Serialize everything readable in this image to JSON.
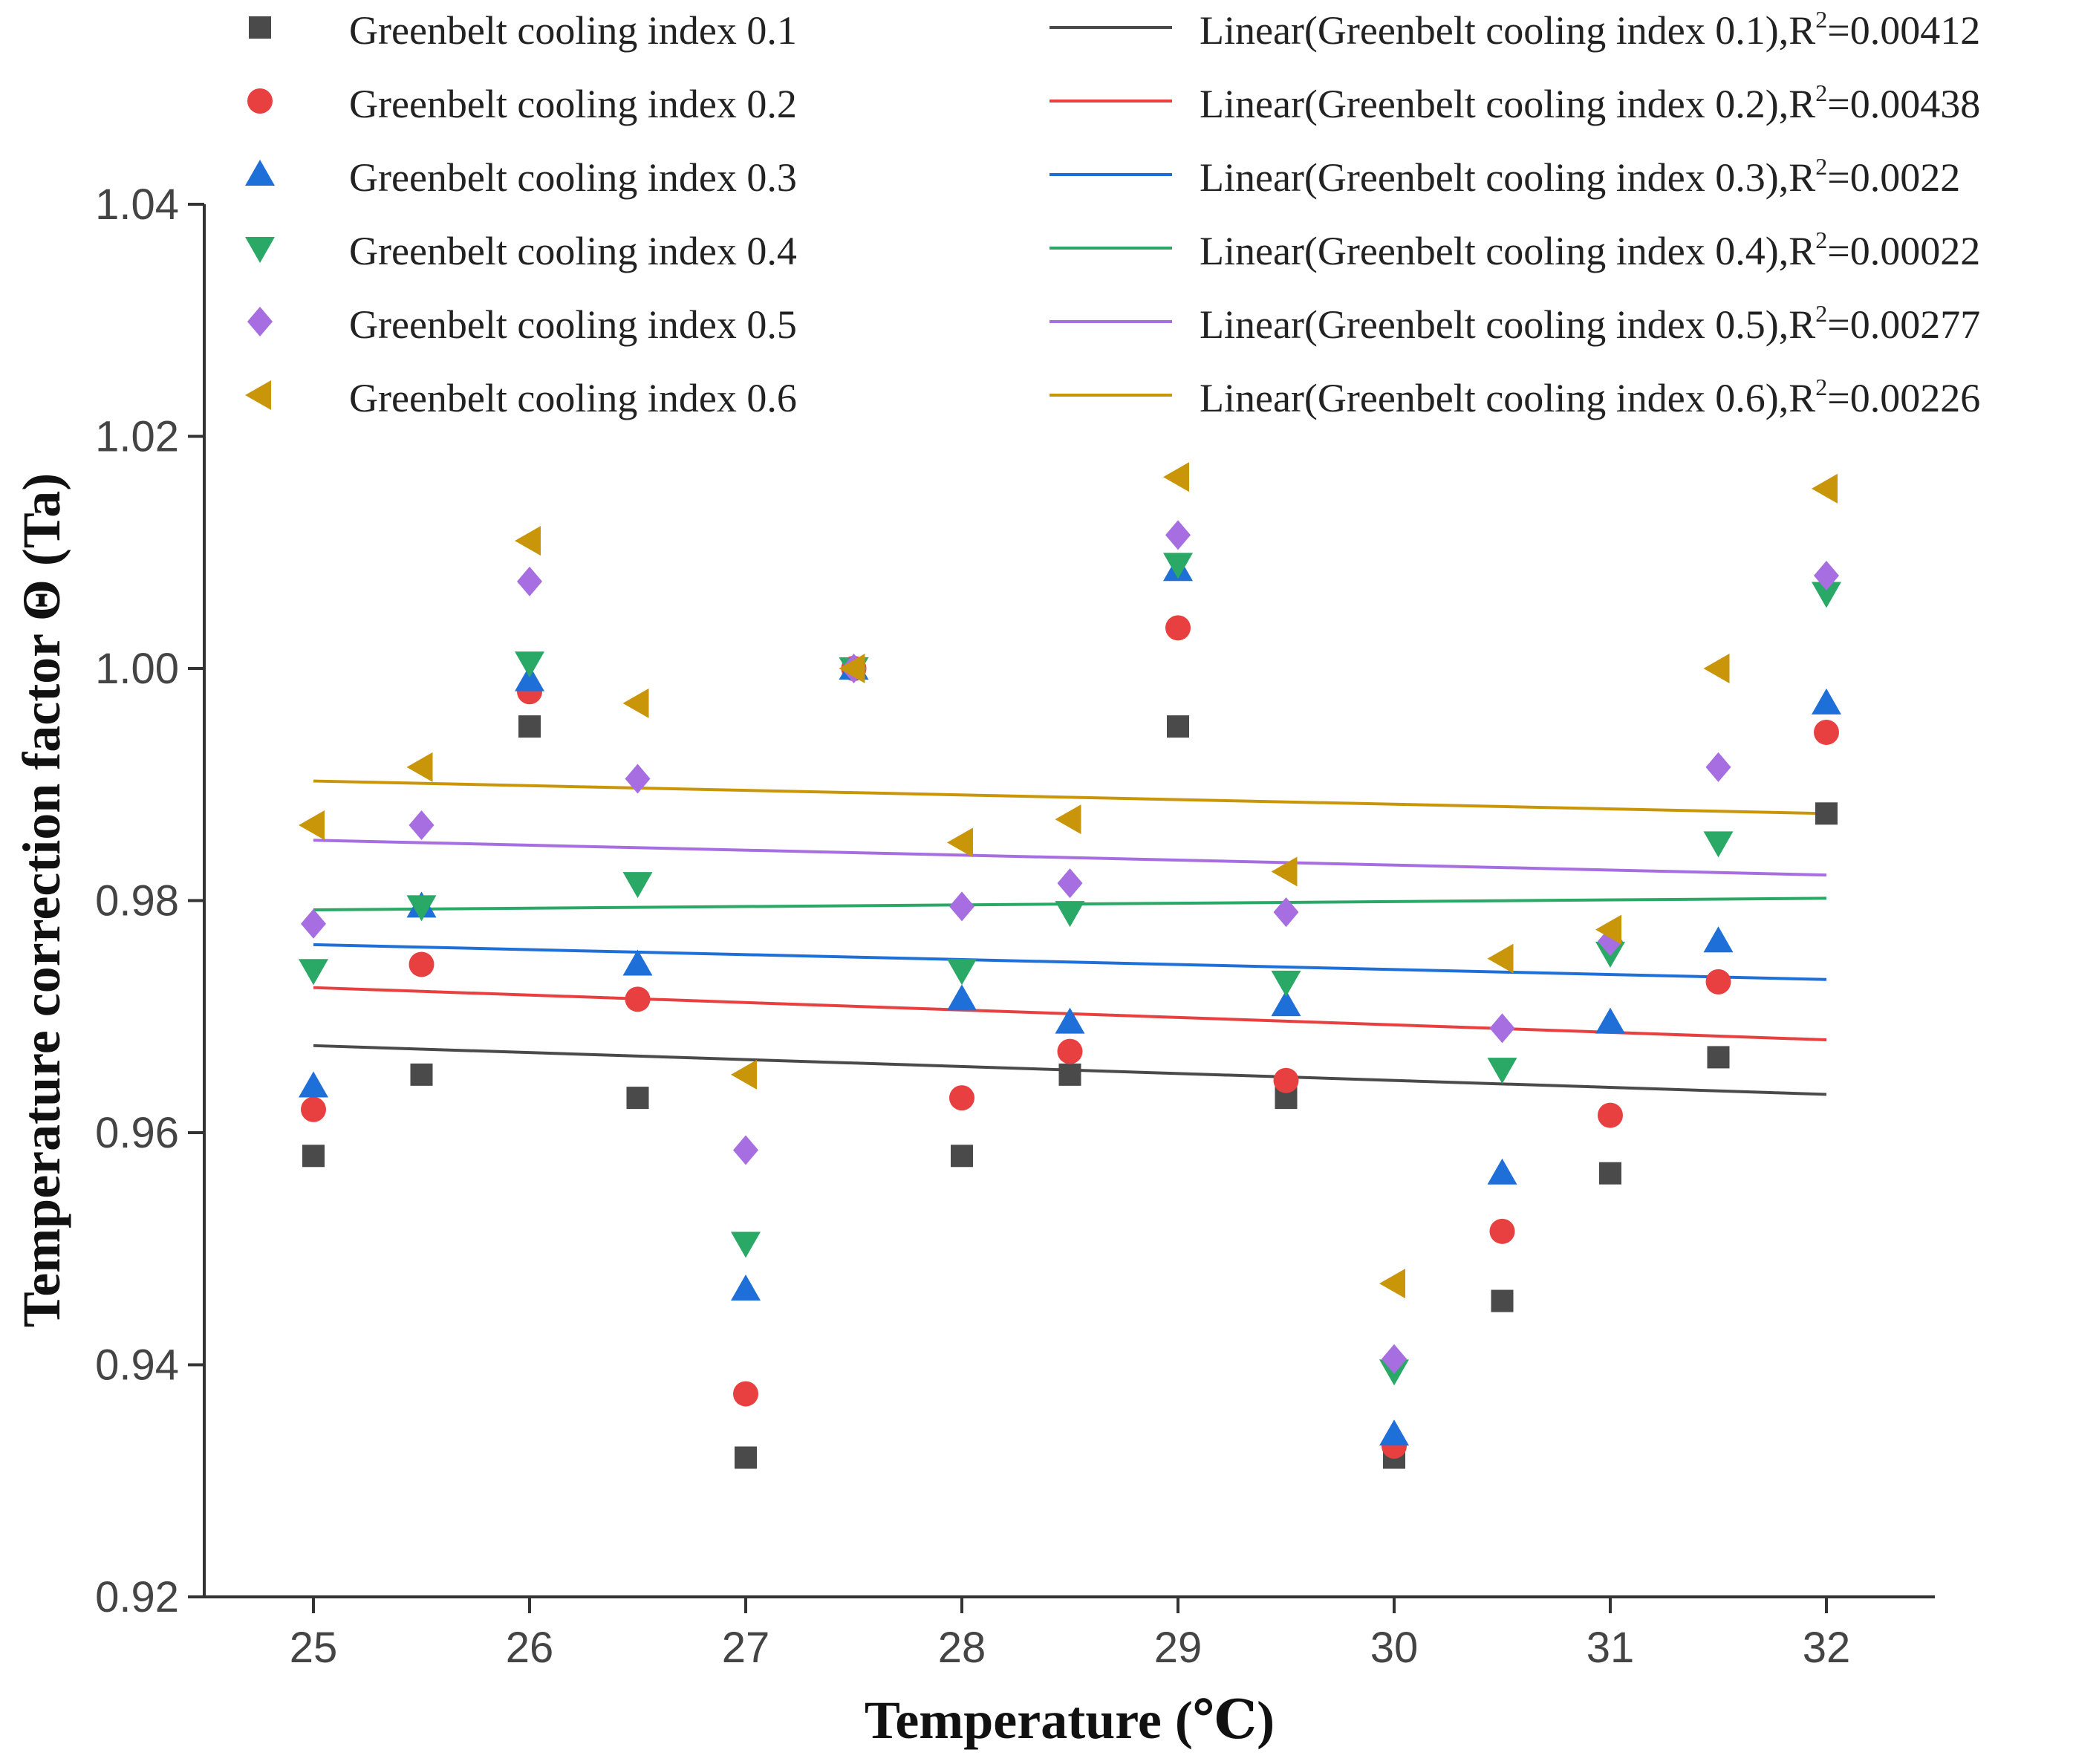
{
  "chart_data": {
    "type": "scatter",
    "title": "",
    "xlabel": "Temperature (℃)",
    "ylabel": "Temperature correction factor Θ (Ta)",
    "xlim": [
      24.5,
      32.5
    ],
    "ylim": [
      0.92,
      1.04
    ],
    "x_ticks": [
      "25",
      "26",
      "27",
      "28",
      "29",
      "30",
      "31",
      "32"
    ],
    "y_ticks": [
      "0.92",
      "0.94",
      "0.96",
      "0.98",
      "1.00",
      "1.02",
      "1.04"
    ],
    "grid": false,
    "legend_position": "top",
    "x": [
      25,
      25.5,
      26,
      26.5,
      27,
      27.5,
      28,
      28.5,
      29,
      29.5,
      30,
      30.5,
      31,
      31.5,
      32
    ],
    "series": [
      {
        "name": "Greenbelt cooling index 0.1",
        "marker": "square",
        "color": "#4a4a4a",
        "values": [
          0.958,
          0.965,
          0.995,
          0.963,
          0.932,
          1.0,
          0.958,
          0.965,
          0.995,
          0.963,
          0.932,
          0.9455,
          0.9565,
          0.9665,
          0.9875
        ]
      },
      {
        "name": "Greenbelt cooling index 0.2",
        "marker": "circle",
        "color": "#e84040",
        "values": [
          0.962,
          0.9745,
          0.998,
          0.9715,
          0.9375,
          1.0,
          0.963,
          0.967,
          1.0035,
          0.9645,
          0.933,
          0.9515,
          0.9615,
          0.973,
          0.9945
        ]
      },
      {
        "name": "Greenbelt cooling index 0.3",
        "marker": "triangle-up",
        "color": "#1f6fd8",
        "values": [
          0.964,
          0.9795,
          0.999,
          0.9745,
          0.9465,
          1.0,
          0.9715,
          0.9695,
          1.0085,
          0.971,
          0.934,
          0.9565,
          0.9695,
          0.9765,
          0.997
        ]
      },
      {
        "name": "Greenbelt cooling index 0.4",
        "marker": "triangle-down",
        "color": "#2aa866",
        "values": [
          0.974,
          0.9795,
          1.0005,
          0.9815,
          0.9505,
          1.0,
          0.974,
          0.979,
          1.009,
          0.973,
          0.9395,
          0.9655,
          0.9755,
          0.985,
          1.0065
        ]
      },
      {
        "name": "Greenbelt cooling index 0.5",
        "marker": "diamond",
        "color": "#a66ee0",
        "values": [
          0.978,
          0.9865,
          1.0075,
          0.9905,
          0.9585,
          1.0,
          0.9795,
          0.9815,
          1.0115,
          0.979,
          0.9405,
          0.969,
          0.9765,
          0.9915,
          1.008
        ]
      },
      {
        "name": "Greenbelt cooling index 0.6",
        "marker": "triangle-left",
        "color": "#c9960a",
        "values": [
          0.9865,
          0.9915,
          1.011,
          0.997,
          0.965,
          1.0,
          0.985,
          0.987,
          1.0165,
          0.9825,
          0.947,
          0.975,
          0.9775,
          1.0,
          1.0155
        ]
      }
    ],
    "trendlines": [
      {
        "name": "Linear(Greenbelt cooling index 0.1),R",
        "r2": "=0.00412",
        "color": "#4a4a4a",
        "x": [
          25,
          32
        ],
        "y": [
          0.9675,
          0.9633
        ]
      },
      {
        "name": "Linear(Greenbelt cooling index 0.2),R",
        "r2": "=0.00438",
        "color": "#e84040",
        "x": [
          25,
          32
        ],
        "y": [
          0.9725,
          0.968
        ]
      },
      {
        "name": "Linear(Greenbelt cooling index 0.3),R",
        "r2": "=0.0022",
        "color": "#1f6fd8",
        "x": [
          25,
          32
        ],
        "y": [
          0.9762,
          0.9732
        ]
      },
      {
        "name": "Linear(Greenbelt cooling index 0.4),R",
        "r2": "=0.00022",
        "color": "#2aa866",
        "x": [
          25,
          32
        ],
        "y": [
          0.9792,
          0.9802
        ]
      },
      {
        "name": "Linear(Greenbelt cooling index 0.5),R",
        "r2": "=0.00277",
        "color": "#a66ee0",
        "x": [
          25,
          32
        ],
        "y": [
          0.9852,
          0.9822
        ]
      },
      {
        "name": "Linear(Greenbelt cooling index 0.6),R",
        "r2": "=0.00226",
        "color": "#c9960a",
        "x": [
          25,
          32
        ],
        "y": [
          0.9903,
          0.9875
        ]
      }
    ],
    "r2_superscript": "2"
  }
}
